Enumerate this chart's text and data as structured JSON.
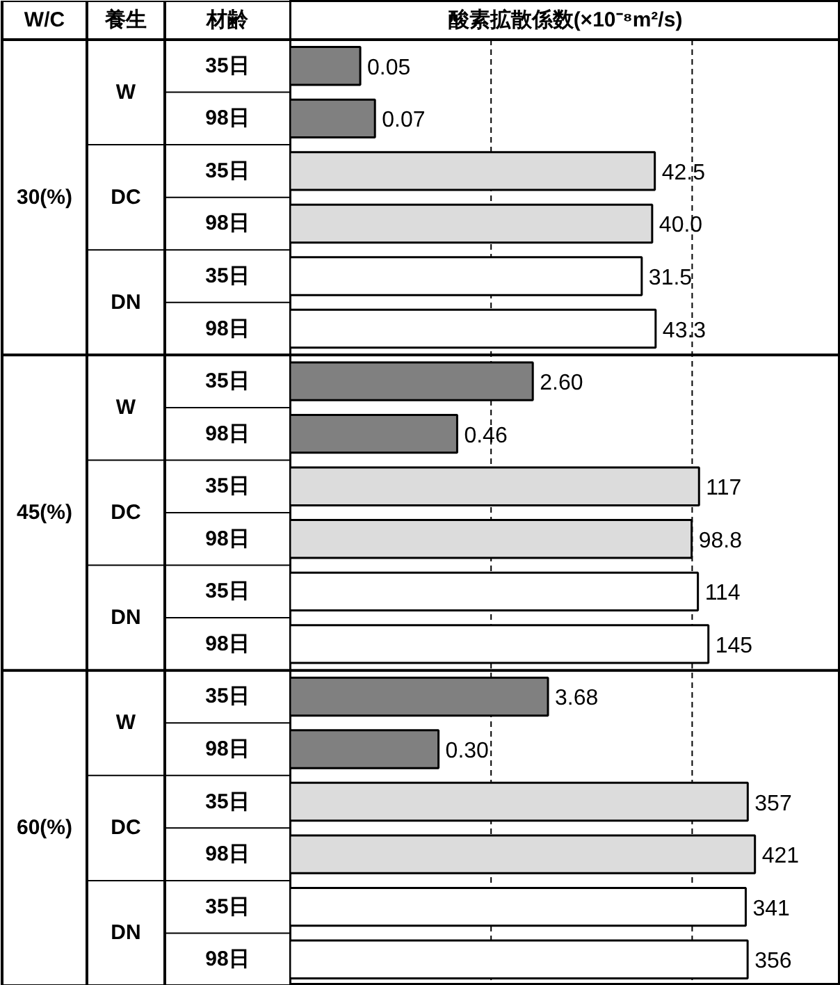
{
  "chart_data": {
    "type": "bar",
    "orientation": "horizontal",
    "log": "x",
    "tick_labels": false,
    "title": "酸素拡散係数(×10⁻⁸m²/s)",
    "categories": [
      "35日",
      "98日",
      "35日",
      "98日",
      "35日",
      "98日",
      "35日",
      "98日",
      "35日",
      "98日",
      "35日",
      "98日",
      "35日",
      "98日",
      "35日",
      "98日",
      "35日",
      "98日"
    ],
    "values": [
      0.05,
      0.07,
      42.5,
      40.0,
      31.5,
      43.3,
      2.6,
      0.46,
      117,
      98.8,
      114,
      145,
      3.68,
      0.3,
      357,
      421,
      341,
      356
    ],
    "value_labels": [
      "0.05",
      "0.07",
      "42.5",
      "40.0",
      "31.5",
      "43.3",
      "2.60",
      "0.46",
      "117",
      "98.8",
      "114",
      "145",
      "3.68",
      "0.30",
      "357",
      "421",
      "341",
      "356"
    ],
    "colors": [
      "#808080",
      "#808080",
      "#dcdcdc",
      "#dcdcdc",
      "#ffffff",
      "#ffffff",
      "#808080",
      "#808080",
      "#dcdcdc",
      "#dcdcdc",
      "#ffffff",
      "#ffffff",
      "#808080",
      "#808080",
      "#dcdcdc",
      "#dcdcdc",
      "#ffffff",
      "#ffffff"
    ],
    "xlim": [
      0.01,
      3000
    ],
    "ref_lines": [
      {
        "axis": "x",
        "value": 1,
        "line_style": "dashed",
        "color": "#000000"
      },
      {
        "axis": "x",
        "value": 100,
        "line_style": "dashed",
        "color": "#000000"
      }
    ],
    "annotations": [
      "W/C",
      "養生",
      "材齢",
      "30(%)",
      "W",
      "DC",
      "DN",
      "45(%)",
      "W",
      "DC",
      "DN",
      "60(%)",
      "W",
      "DC",
      "DN"
    ]
  }
}
